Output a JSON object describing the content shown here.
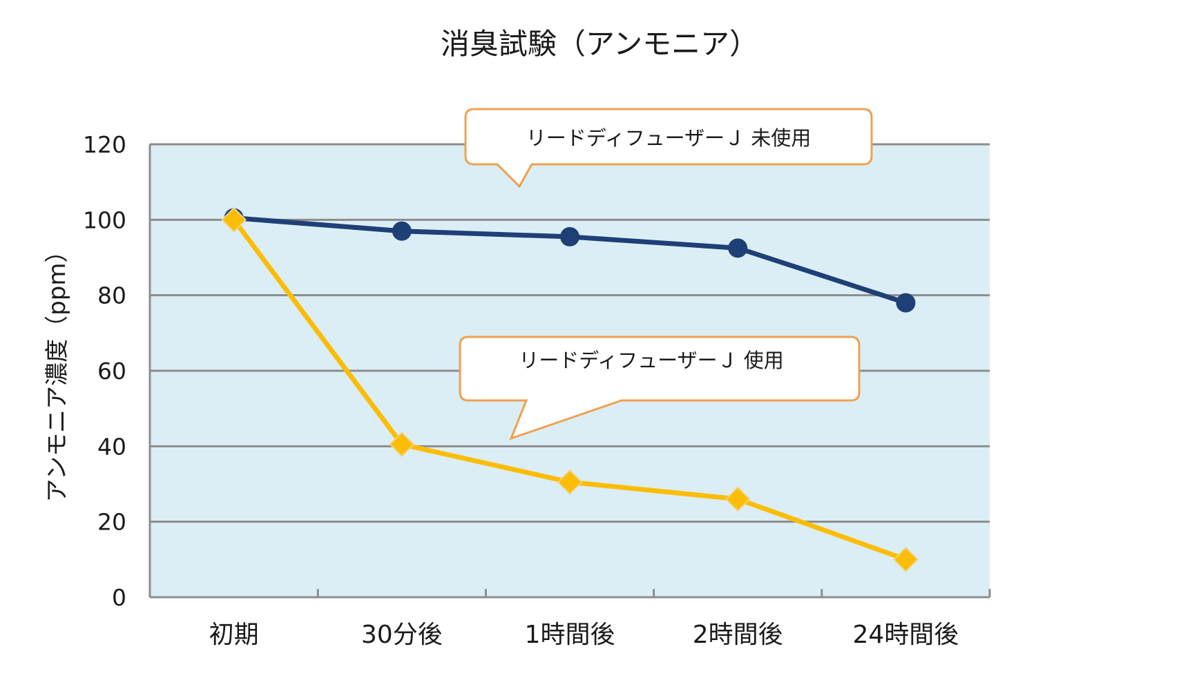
{
  "chart_data": {
    "type": "line",
    "title": "消臭試験（アンモニア）",
    "ylabel": "アンモニア濃度（ppm）",
    "xlabel": "",
    "categories": [
      "初期",
      "30分後",
      "1時間後",
      "2時間後",
      "24時間後"
    ],
    "ylim": [
      0,
      120
    ],
    "yticks": [
      0,
      20,
      40,
      60,
      80,
      100,
      120
    ],
    "grid": true,
    "series": [
      {
        "name": "リードディフューザーＪ 未使用",
        "values": [
          100.5,
          97,
          95.5,
          92.5,
          78
        ],
        "color": "#1f3f77",
        "marker": "circle"
      },
      {
        "name": "リードディフューザーＪ 使用",
        "values": [
          100,
          40.5,
          30.5,
          26,
          10
        ],
        "color": "#fbbd08",
        "marker": "diamond"
      }
    ]
  },
  "colors": {
    "plot_background": "#dceef5",
    "gridline": "#8c8c8c",
    "callout_border": "#f0a050"
  }
}
